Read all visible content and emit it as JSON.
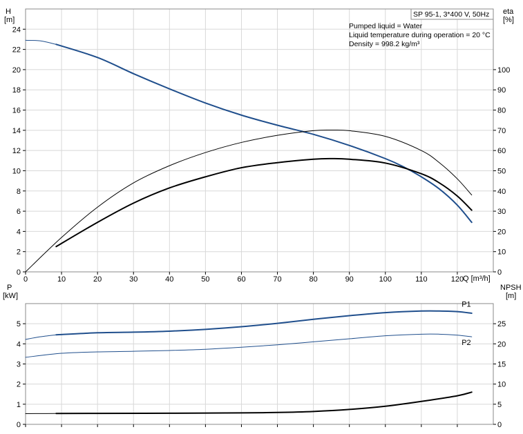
{
  "chart_data": [
    {
      "type": "line",
      "title": "SP 95-1, 3*400 V, 50Hz",
      "annotations": [
        "Pumped liquid = Water",
        "Liquid temperature during operation = 20 °C",
        "Density = 998.2 kg/m³"
      ],
      "xlabel": "Q [m³/h]",
      "ylabel_left": [
        "H",
        "[m]"
      ],
      "ylabel_right": [
        "eta",
        "[%]"
      ],
      "xlim": [
        0,
        130
      ],
      "ylim_left": [
        0,
        26
      ],
      "ylim_right": [
        0,
        130
      ],
      "grid": true,
      "x_ticks": [
        "0",
        "10",
        "20",
        "30",
        "40",
        "50",
        "60",
        "70",
        "80",
        "90",
        "100",
        "110",
        "120"
      ],
      "y_ticks_left": [
        "0",
        "2",
        "4",
        "6",
        "8",
        "10",
        "12",
        "14",
        "16",
        "18",
        "20",
        "22",
        "24"
      ],
      "y_ticks_right": [
        "0",
        "10",
        "20",
        "30",
        "40",
        "50",
        "60",
        "70",
        "80",
        "90",
        "100"
      ],
      "series": [
        {
          "key": "H_ext",
          "axis": "left",
          "color": "#1f4e8c",
          "width": 1,
          "x": [
            0,
            4,
            8.5
          ],
          "y": [
            22.9,
            22.85,
            22.5
          ]
        },
        {
          "key": "H",
          "axis": "left",
          "color": "#1f4e8c",
          "width": 2,
          "x": [
            8.5,
            20,
            30,
            40,
            50,
            60,
            70,
            80,
            90,
            100,
            105,
            110,
            115,
            120,
            124
          ],
          "y": [
            22.5,
            21.2,
            19.6,
            18.1,
            16.7,
            15.5,
            14.5,
            13.6,
            12.5,
            11.2,
            10.4,
            9.4,
            8.2,
            6.6,
            4.9
          ]
        },
        {
          "key": "eta_thin",
          "axis": "right",
          "color": "#000000",
          "width": 1,
          "x": [
            0,
            10,
            20,
            30,
            40,
            50,
            60,
            70,
            80,
            85,
            90,
            100,
            110,
            115,
            120,
            124
          ],
          "y": [
            0,
            17,
            32,
            44,
            52.5,
            59,
            64,
            67.5,
            69.8,
            70.1,
            69.8,
            67,
            60,
            54,
            46,
            38
          ]
        },
        {
          "key": "eta_thick",
          "axis": "right",
          "color": "#000000",
          "width": 2,
          "x": [
            8.5,
            20,
            30,
            40,
            50,
            60,
            70,
            80,
            85,
            90,
            100,
            110,
            115,
            120,
            124
          ],
          "y": [
            12.5,
            24.5,
            34,
            41.5,
            47,
            51.5,
            54,
            55.7,
            56,
            55.7,
            53.8,
            48.5,
            44,
            37.5,
            30.5
          ]
        }
      ]
    },
    {
      "type": "line",
      "xlabel": "",
      "ylabel_left": [
        "P",
        "[kW]"
      ],
      "ylabel_right": [
        "NPSH",
        "[m]"
      ],
      "xlim": [
        0,
        130
      ],
      "ylim_left": [
        0,
        6
      ],
      "ylim_right": [
        0,
        30
      ],
      "grid": true,
      "y_ticks_left": [
        "0",
        "1",
        "2",
        "3",
        "4",
        "5"
      ],
      "y_ticks_right": [
        "0",
        "5",
        "10",
        "15",
        "20",
        "25"
      ],
      "series": [
        {
          "key": "P1_ext",
          "axis": "left",
          "color": "#1f4e8c",
          "width": 1,
          "x": [
            0,
            4,
            8.5
          ],
          "y": [
            4.22,
            4.35,
            4.45
          ]
        },
        {
          "name": "P1",
          "axis": "left",
          "color": "#1f4e8c",
          "width": 2,
          "x": [
            8.5,
            20,
            30,
            40,
            50,
            60,
            70,
            80,
            90,
            100,
            110,
            115,
            120,
            124
          ],
          "y": [
            4.45,
            4.55,
            4.58,
            4.63,
            4.72,
            4.85,
            5.02,
            5.22,
            5.4,
            5.55,
            5.63,
            5.63,
            5.6,
            5.52
          ]
        },
        {
          "name": "P2",
          "axis": "left",
          "color": "#1f4e8c",
          "width": 1,
          "x": [
            0,
            10,
            20,
            30,
            40,
            50,
            60,
            70,
            80,
            90,
            100,
            110,
            115,
            120,
            124
          ],
          "y": [
            3.33,
            3.53,
            3.6,
            3.63,
            3.67,
            3.73,
            3.83,
            3.95,
            4.1,
            4.25,
            4.4,
            4.48,
            4.48,
            4.43,
            4.35
          ]
        },
        {
          "key": "NPSH",
          "axis": "right",
          "color": "#000000",
          "width": 2,
          "x": [
            8.5,
            20,
            40,
            60,
            70,
            80,
            90,
            100,
            110,
            120,
            124
          ],
          "y": [
            2.7,
            2.72,
            2.76,
            2.85,
            2.95,
            3.2,
            3.7,
            4.5,
            5.7,
            7.1,
            8.0
          ]
        },
        {
          "key": "NPSH_ext",
          "axis": "right",
          "color": "#000000",
          "width": 1,
          "x": [
            0,
            4,
            8.5
          ],
          "y": [
            2.65,
            2.68,
            2.7
          ]
        }
      ]
    }
  ]
}
